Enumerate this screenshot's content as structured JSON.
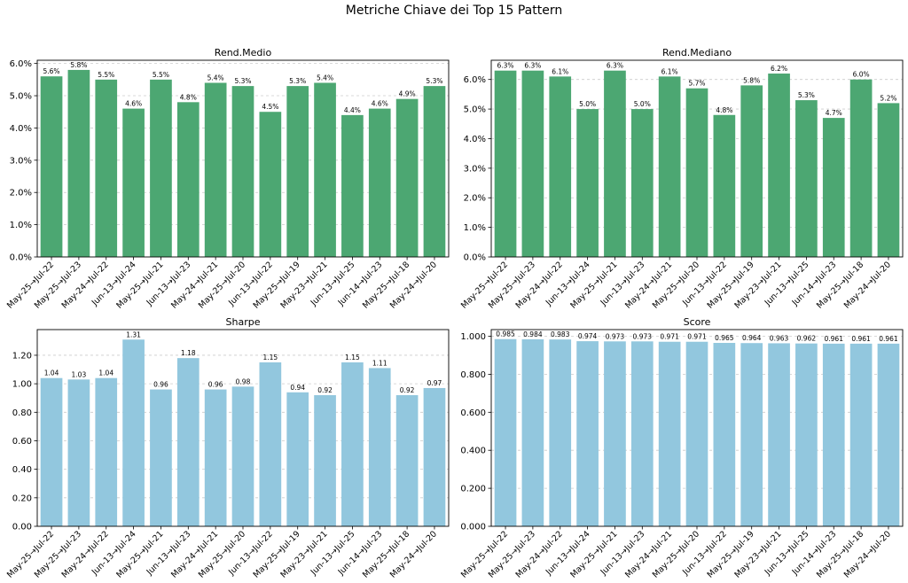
{
  "title": "Metriche Chiave dei Top 15 Pattern",
  "colors": {
    "green": "#4ca772",
    "blue": "#92c7de",
    "grid": "#cccccc"
  },
  "chart_data": [
    {
      "type": "bar",
      "title": "Rend.Medio",
      "categories": [
        "May-25→Jul-22",
        "May-25→Jul-23",
        "May-24→Jul-22",
        "Jun-13→Jul-24",
        "May-25→Jul-21",
        "Jun-13→Jul-23",
        "May-24→Jul-21",
        "May-25→Jul-20",
        "Jun-13→Jul-22",
        "May-25→Jul-19",
        "May-23→Jul-21",
        "Jun-13→Jul-25",
        "Jun-14→Jul-23",
        "May-25→Jul-18",
        "May-24→Jul-20"
      ],
      "values": [
        5.6,
        5.8,
        5.5,
        4.6,
        5.5,
        4.8,
        5.4,
        5.3,
        4.5,
        5.3,
        5.4,
        4.4,
        4.6,
        4.9,
        5.3
      ],
      "value_labels": [
        "5.6%",
        "5.8%",
        "5.5%",
        "4.6%",
        "5.5%",
        "4.8%",
        "5.4%",
        "5.3%",
        "4.5%",
        "5.3%",
        "5.4%",
        "4.4%",
        "4.6%",
        "4.9%",
        "5.3%"
      ],
      "yticks": [
        "0.0%",
        "1.0%",
        "2.0%",
        "3.0%",
        "4.0%",
        "5.0%",
        "6.0%"
      ],
      "ylim": [
        0,
        6.1
      ],
      "color": "green",
      "grid": true
    },
    {
      "type": "bar",
      "title": "Rend.Mediano",
      "categories": [
        "May-25→Jul-22",
        "May-25→Jul-23",
        "May-24→Jul-22",
        "Jun-13→Jul-24",
        "May-25→Jul-21",
        "Jun-13→Jul-23",
        "May-24→Jul-21",
        "May-25→Jul-20",
        "Jun-13→Jul-22",
        "May-25→Jul-19",
        "May-23→Jul-21",
        "Jun-13→Jul-25",
        "Jun-14→Jul-23",
        "May-25→Jul-18",
        "May-24→Jul-20"
      ],
      "values": [
        6.3,
        6.3,
        6.1,
        5.0,
        6.3,
        5.0,
        6.1,
        5.7,
        4.8,
        5.8,
        6.2,
        5.3,
        4.7,
        6.0,
        5.2
      ],
      "value_labels": [
        "6.3%",
        "6.3%",
        "6.1%",
        "5.0%",
        "6.3%",
        "5.0%",
        "6.1%",
        "5.7%",
        "4.8%",
        "5.8%",
        "6.2%",
        "5.3%",
        "4.7%",
        "6.0%",
        "5.2%"
      ],
      "yticks": [
        "0.0%",
        "1.0%",
        "2.0%",
        "3.0%",
        "4.0%",
        "5.0%",
        "6.0%"
      ],
      "ylim": [
        0,
        6.65
      ],
      "color": "green",
      "grid": true
    },
    {
      "type": "bar",
      "title": "Sharpe",
      "categories": [
        "May-25→Jul-22",
        "May-25→Jul-23",
        "May-24→Jul-22",
        "Jun-13→Jul-24",
        "May-25→Jul-21",
        "Jun-13→Jul-23",
        "May-24→Jul-21",
        "May-25→Jul-20",
        "Jun-13→Jul-22",
        "May-25→Jul-19",
        "May-23→Jul-21",
        "Jun-13→Jul-25",
        "Jun-14→Jul-23",
        "May-25→Jul-18",
        "May-24→Jul-20"
      ],
      "values": [
        1.04,
        1.03,
        1.04,
        1.31,
        0.96,
        1.18,
        0.96,
        0.98,
        1.15,
        0.94,
        0.92,
        1.15,
        1.11,
        0.92,
        0.97
      ],
      "value_labels": [
        "1.04",
        "1.03",
        "1.04",
        "1.31",
        "0.96",
        "1.18",
        "0.96",
        "0.98",
        "1.15",
        "0.94",
        "0.92",
        "1.15",
        "1.11",
        "0.92",
        "0.97"
      ],
      "yticks": [
        "0.00",
        "0.20",
        "0.40",
        "0.60",
        "0.80",
        "1.00",
        "1.20"
      ],
      "ylim": [
        0,
        1.38
      ],
      "color": "blue",
      "grid": true
    },
    {
      "type": "bar",
      "title": "Score",
      "categories": [
        "May-25→Jul-22",
        "May-25→Jul-23",
        "May-24→Jul-22",
        "Jun-13→Jul-24",
        "May-25→Jul-21",
        "Jun-13→Jul-23",
        "May-24→Jul-21",
        "May-25→Jul-20",
        "Jun-13→Jul-22",
        "May-25→Jul-19",
        "May-23→Jul-21",
        "Jun-13→Jul-25",
        "Jun-14→Jul-23",
        "May-25→Jul-18",
        "May-24→Jul-20"
      ],
      "values": [
        0.985,
        0.984,
        0.983,
        0.974,
        0.973,
        0.973,
        0.971,
        0.971,
        0.965,
        0.964,
        0.963,
        0.962,
        0.961,
        0.961,
        0.961
      ],
      "value_labels": [
        "0.985",
        "0.984",
        "0.983",
        "0.974",
        "0.973",
        "0.973",
        "0.971",
        "0.971",
        "0.965",
        "0.964",
        "0.963",
        "0.962",
        "0.961",
        "0.961",
        "0.961"
      ],
      "yticks": [
        "0.000",
        "0.200",
        "0.400",
        "0.600",
        "0.800",
        "1.000"
      ],
      "ylim": [
        0,
        1.035
      ],
      "color": "blue",
      "grid": true
    }
  ]
}
